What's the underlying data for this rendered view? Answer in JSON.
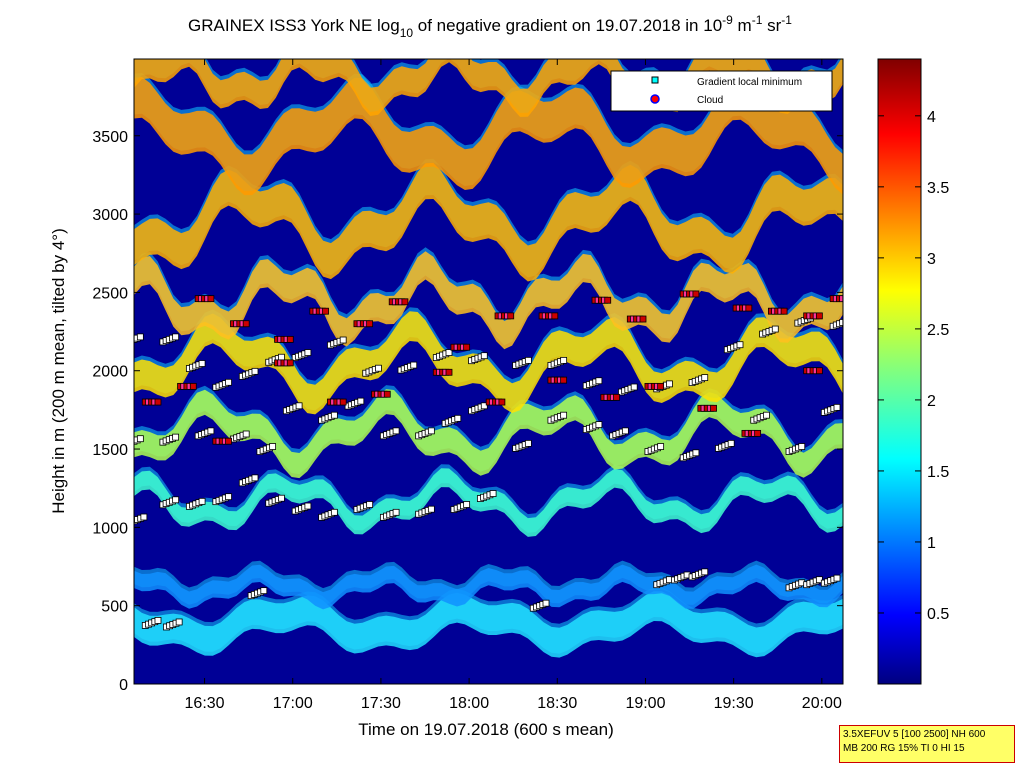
{
  "chart_data": {
    "type": "heatmap",
    "title": {
      "prefix": "GRAINEX ISS3 York NE log",
      "log_base": "10",
      "middle": " of negative gradient on 19.07.2018 in 10",
      "exp1": "-9",
      "unit_m": " m",
      "exp2": "-1",
      "unit_sr": " sr",
      "exp3": "-1"
    },
    "xlabel": "Time on 19.07.2018 (600 s mean)",
    "ylabel": "Height in m (200 m mean, tilted by 4°)",
    "x_range_hours": [
      16.1,
      20.12
    ],
    "x_ticks": [
      {
        "t": 16.5,
        "label": "16:30"
      },
      {
        "t": 17.0,
        "label": "17:00"
      },
      {
        "t": 17.5,
        "label": "17:30"
      },
      {
        "t": 18.0,
        "label": "18:00"
      },
      {
        "t": 18.5,
        "label": "18:30"
      },
      {
        "t": 19.0,
        "label": "19:00"
      },
      {
        "t": 19.5,
        "label": "19:30"
      },
      {
        "t": 20.0,
        "label": "20:00"
      }
    ],
    "y_range": [
      0,
      3990
    ],
    "y_ticks": [
      0,
      500,
      1000,
      1500,
      2000,
      2500,
      3000,
      3500
    ],
    "colorbar": {
      "colormap": "jet",
      "range": [
        0,
        4.4
      ],
      "ticks": [
        0.5,
        1,
        1.5,
        2,
        2.5,
        3,
        3.5,
        4
      ],
      "tick_labels": [
        "0.5",
        "1",
        "1.5",
        "2",
        "2.5",
        "3",
        "3.5",
        "4"
      ]
    },
    "legend": {
      "position": "top-right",
      "entries": [
        {
          "label": "Gradient local minimum",
          "marker": "square",
          "color": "#00ffff"
        },
        {
          "label": "Cloud",
          "marker": "circle",
          "color": "#ff0000"
        }
      ]
    },
    "layers": [
      {
        "name": "gradient local minimum layer 1",
        "points": [
          [
            16.12,
            1050
          ],
          [
            16.3,
            1160
          ],
          [
            16.45,
            1150
          ],
          [
            16.6,
            1180
          ],
          [
            16.75,
            1300
          ],
          [
            16.9,
            1170
          ],
          [
            17.05,
            1120
          ],
          [
            17.2,
            1080
          ],
          [
            17.4,
            1130
          ],
          [
            17.55,
            1080
          ],
          [
            17.75,
            1100
          ],
          [
            17.95,
            1130
          ],
          [
            18.1,
            1200
          ]
        ]
      },
      {
        "name": "gradient local minimum layer 2",
        "points": [
          [
            16.1,
            1550
          ],
          [
            16.3,
            1560
          ],
          [
            16.5,
            1600
          ],
          [
            16.7,
            1580
          ],
          [
            16.85,
            1500
          ],
          [
            17.0,
            1760
          ],
          [
            17.2,
            1700
          ],
          [
            17.35,
            1790
          ],
          [
            17.55,
            1600
          ],
          [
            17.75,
            1600
          ],
          [
            17.9,
            1680
          ],
          [
            18.05,
            1760
          ],
          [
            18.3,
            1520
          ],
          [
            18.5,
            1700
          ],
          [
            18.7,
            1640
          ],
          [
            18.85,
            1600
          ],
          [
            19.05,
            1500
          ],
          [
            19.25,
            1460
          ],
          [
            19.45,
            1520
          ],
          [
            19.65,
            1700
          ],
          [
            19.85,
            1500
          ],
          [
            20.05,
            1750
          ]
        ]
      },
      {
        "name": "gradient local minimum layer 3",
        "points": [
          [
            16.1,
            2200
          ],
          [
            16.3,
            2200
          ],
          [
            16.45,
            2030
          ],
          [
            16.6,
            1910
          ],
          [
            16.75,
            1980
          ],
          [
            16.9,
            2070
          ],
          [
            17.05,
            2100
          ],
          [
            17.25,
            2180
          ],
          [
            17.45,
            2000
          ],
          [
            17.65,
            2020
          ],
          [
            17.85,
            2100
          ],
          [
            18.05,
            2080
          ],
          [
            18.3,
            2050
          ],
          [
            18.5,
            2050
          ],
          [
            18.7,
            1920
          ],
          [
            18.9,
            1880
          ],
          [
            19.1,
            1900
          ],
          [
            19.3,
            1940
          ],
          [
            19.5,
            2150
          ],
          [
            19.7,
            2250
          ],
          [
            19.9,
            2320
          ],
          [
            20.1,
            2300
          ]
        ]
      },
      {
        "name": "cloud points upper",
        "points": [
          [
            16.5,
            2460
          ],
          [
            16.7,
            2300
          ],
          [
            16.95,
            2200
          ],
          [
            17.15,
            2380
          ],
          [
            17.4,
            2300
          ],
          [
            17.6,
            2440
          ],
          [
            17.95,
            2150
          ],
          [
            18.2,
            2350
          ],
          [
            18.45,
            2350
          ],
          [
            18.75,
            2450
          ],
          [
            18.95,
            2330
          ],
          [
            19.25,
            2490
          ],
          [
            19.55,
            2400
          ],
          [
            19.75,
            2380
          ],
          [
            19.95,
            2350
          ],
          [
            20.1,
            2460
          ]
        ]
      },
      {
        "name": "cloud points lower",
        "points": [
          [
            16.2,
            1800
          ],
          [
            16.4,
            1900
          ],
          [
            16.6,
            1550
          ],
          [
            16.95,
            2050
          ],
          [
            17.25,
            1800
          ],
          [
            17.5,
            1850
          ],
          [
            17.85,
            1990
          ],
          [
            18.15,
            1800
          ],
          [
            18.5,
            1940
          ],
          [
            18.8,
            1830
          ],
          [
            19.05,
            1900
          ],
          [
            19.35,
            1760
          ],
          [
            19.6,
            1600
          ],
          [
            19.95,
            2000
          ]
        ]
      },
      {
        "name": "isolated minima near 500-650 m",
        "points": [
          [
            16.2,
            390
          ],
          [
            16.32,
            380
          ],
          [
            16.8,
            580
          ],
          [
            18.4,
            500
          ],
          [
            19.1,
            650
          ],
          [
            19.2,
            680
          ],
          [
            19.3,
            700
          ],
          [
            19.85,
            630
          ],
          [
            19.95,
            650
          ],
          [
            20.05,
            660
          ]
        ]
      }
    ]
  },
  "info_box": {
    "line1": "3.5XEFUV 5 [100 2500] NH 600",
    "line2": "MB 200 RG 15% TI 0 HI 15"
  }
}
